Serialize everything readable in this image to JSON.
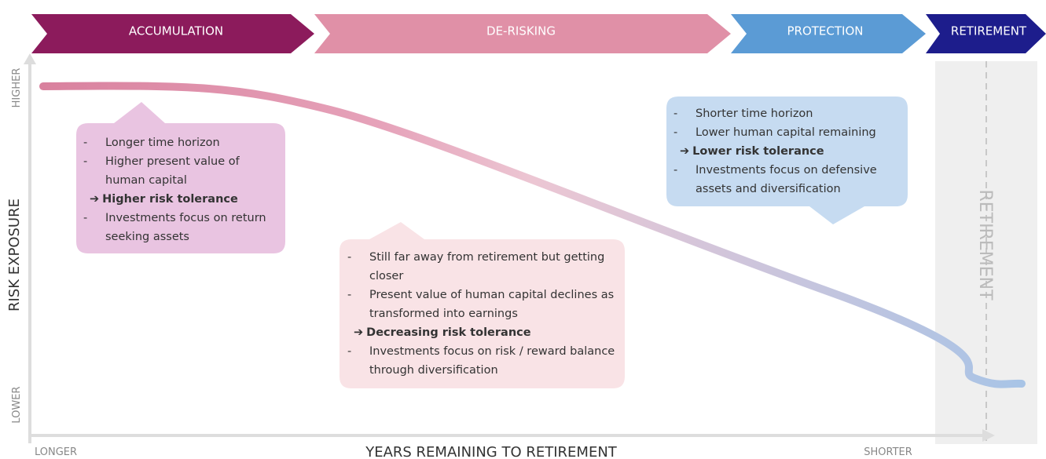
{
  "phases": [
    "ACCUMULATION",
    "DE-RISKING",
    "PROTECTION",
    "RETIREMENT"
  ],
  "axes": {
    "y_label": "RISK EXPOSURE",
    "y_high": "HIGHER",
    "y_low": "LOWER",
    "x_label": "YEARS REMAINING TO RETIREMENT",
    "x_left": "LONGER",
    "x_right": "SHORTER",
    "retirement_zone": "RETIREMENT"
  },
  "callouts": [
    {
      "items": [
        "Longer time horizon",
        "Higher present value of human capital",
        "Higher risk tolerance",
        "Investments focus on return seeking assets"
      ],
      "emphasis": 2
    },
    {
      "items": [
        "Still far away from retirement but getting closer",
        "Present value of human capital declines as transformed into earnings",
        "Decreasing risk tolerance",
        "Investments focus on risk / reward balance through diversification"
      ],
      "emphasis": 2
    },
    {
      "items": [
        "Shorter time horizon",
        "Lower human capital remaining",
        "Lower risk tolerance",
        "Investments focus on defensive assets and diversification"
      ],
      "emphasis": 2
    }
  ]
}
